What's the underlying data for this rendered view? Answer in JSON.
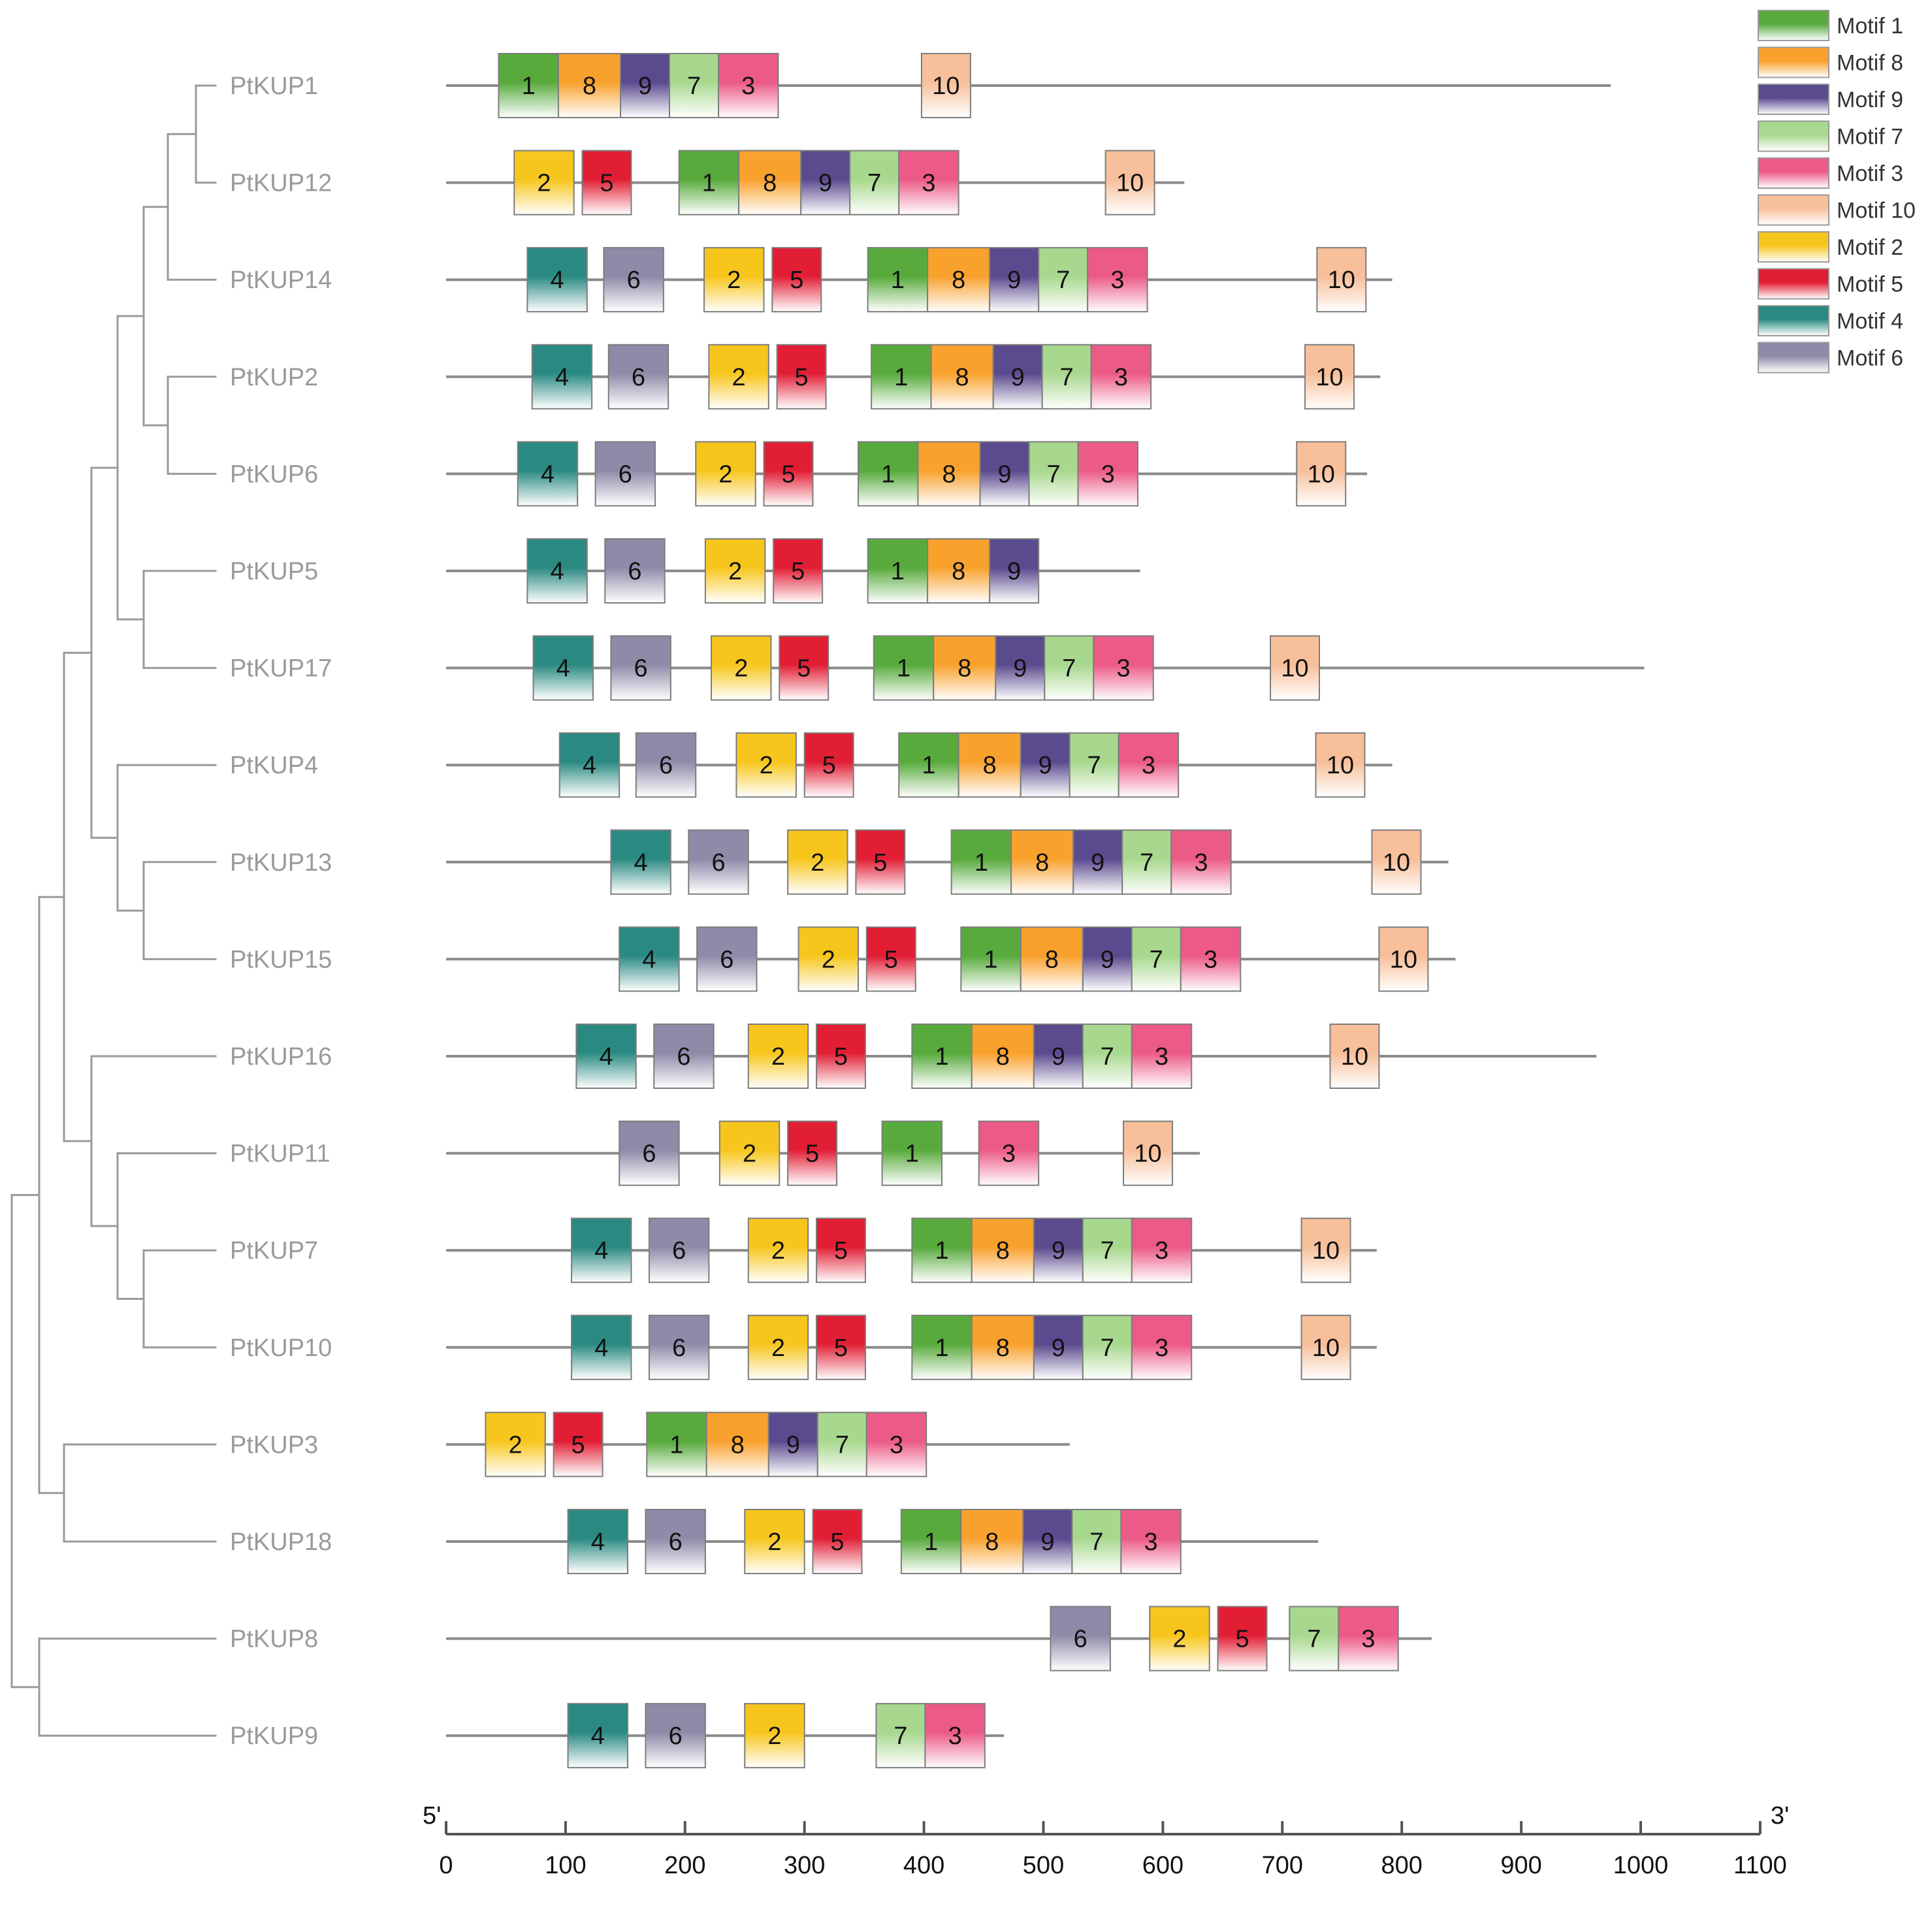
{
  "legend": [
    {
      "motif": "1",
      "label": "Motif 1",
      "top": "#58aa3c",
      "bottom": "#ffffff"
    },
    {
      "motif": "8",
      "label": "Motif 8",
      "top": "#f9a12d",
      "bottom": "#ffffff"
    },
    {
      "motif": "9",
      "label": "Motif 9",
      "top": "#5a4a8e",
      "bottom": "#ffffff"
    },
    {
      "motif": "7",
      "label": "Motif 7",
      "top": "#a8d88e",
      "bottom": "#ffffff"
    },
    {
      "motif": "3",
      "label": "Motif 3",
      "top": "#ec5a87",
      "bottom": "#ffffff"
    },
    {
      "motif": "10",
      "label": "Motif 10",
      "top": "#f7bf9a",
      "bottom": "#ffffff"
    },
    {
      "motif": "2",
      "label": "Motif 2",
      "top": "#f7c61c",
      "bottom": "#ffffff"
    },
    {
      "motif": "5",
      "label": "Motif 5",
      "top": "#e21e35",
      "bottom": "#ffffff"
    },
    {
      "motif": "4",
      "label": "Motif 4",
      "top": "#2a8a82",
      "bottom": "#ffffff"
    },
    {
      "motif": "6",
      "label": "Motif 6",
      "top": "#8f8aa8",
      "bottom": "#ffffff"
    }
  ],
  "axis": {
    "left_label": "5'",
    "right_label": "3'",
    "min": 0,
    "max": 1100,
    "ticks": [
      "0",
      "100",
      "200",
      "300",
      "400",
      "500",
      "600",
      "700",
      "800",
      "900",
      "1000",
      "1100"
    ]
  },
  "genes": [
    {
      "name": "PtKUP1",
      "length": 975,
      "motifs": [
        {
          "id": "1",
          "start": 44
        },
        {
          "id": "8",
          "start": 94
        },
        {
          "id": "9",
          "start": 146
        },
        {
          "id": "7",
          "start": 187
        },
        {
          "id": "3",
          "start": 228
        },
        {
          "id": "10",
          "start": 398
        }
      ]
    },
    {
      "name": "PtKUP12",
      "length": 618,
      "motifs": [
        {
          "id": "2",
          "start": 57
        },
        {
          "id": "5",
          "start": 114
        },
        {
          "id": "1",
          "start": 195
        },
        {
          "id": "8",
          "start": 245
        },
        {
          "id": "9",
          "start": 297
        },
        {
          "id": "7",
          "start": 338
        },
        {
          "id": "3",
          "start": 379
        },
        {
          "id": "10",
          "start": 552
        }
      ]
    },
    {
      "name": "PtKUP14",
      "length": 792,
      "motifs": [
        {
          "id": "4",
          "start": 68
        },
        {
          "id": "6",
          "start": 132
        },
        {
          "id": "2",
          "start": 216
        },
        {
          "id": "5",
          "start": 273
        },
        {
          "id": "1",
          "start": 353
        },
        {
          "id": "8",
          "start": 403
        },
        {
          "id": "9",
          "start": 455
        },
        {
          "id": "7",
          "start": 496
        },
        {
          "id": "3",
          "start": 537
        },
        {
          "id": "10",
          "start": 729
        }
      ]
    },
    {
      "name": "PtKUP2",
      "length": 782,
      "motifs": [
        {
          "id": "4",
          "start": 72
        },
        {
          "id": "6",
          "start": 136
        },
        {
          "id": "2",
          "start": 220
        },
        {
          "id": "5",
          "start": 277
        },
        {
          "id": "1",
          "start": 356
        },
        {
          "id": "8",
          "start": 406
        },
        {
          "id": "9",
          "start": 458
        },
        {
          "id": "7",
          "start": 499
        },
        {
          "id": "3",
          "start": 540
        },
        {
          "id": "10",
          "start": 719
        }
      ]
    },
    {
      "name": "PtKUP6",
      "length": 771,
      "motifs": [
        {
          "id": "4",
          "start": 60
        },
        {
          "id": "6",
          "start": 125
        },
        {
          "id": "2",
          "start": 209
        },
        {
          "id": "5",
          "start": 266
        },
        {
          "id": "1",
          "start": 345
        },
        {
          "id": "8",
          "start": 395
        },
        {
          "id": "9",
          "start": 447
        },
        {
          "id": "7",
          "start": 488
        },
        {
          "id": "3",
          "start": 529
        },
        {
          "id": "10",
          "start": 712
        }
      ]
    },
    {
      "name": "PtKUP5",
      "length": 581,
      "motifs": [
        {
          "id": "4",
          "start": 68
        },
        {
          "id": "6",
          "start": 133
        },
        {
          "id": "2",
          "start": 217
        },
        {
          "id": "5",
          "start": 274
        },
        {
          "id": "1",
          "start": 353
        },
        {
          "id": "8",
          "start": 403
        },
        {
          "id": "9",
          "start": 455
        }
      ]
    },
    {
      "name": "PtKUP17",
      "length": 1003,
      "motifs": [
        {
          "id": "4",
          "start": 73
        },
        {
          "id": "6",
          "start": 138
        },
        {
          "id": "2",
          "start": 222
        },
        {
          "id": "5",
          "start": 279
        },
        {
          "id": "1",
          "start": 358
        },
        {
          "id": "8",
          "start": 408
        },
        {
          "id": "9",
          "start": 460
        },
        {
          "id": "7",
          "start": 501
        },
        {
          "id": "3",
          "start": 542
        },
        {
          "id": "10",
          "start": 690
        }
      ]
    },
    {
      "name": "PtKUP4",
      "length": 792,
      "motifs": [
        {
          "id": "4",
          "start": 95
        },
        {
          "id": "6",
          "start": 159
        },
        {
          "id": "2",
          "start": 243
        },
        {
          "id": "5",
          "start": 300
        },
        {
          "id": "1",
          "start": 379
        },
        {
          "id": "8",
          "start": 429
        },
        {
          "id": "9",
          "start": 481
        },
        {
          "id": "7",
          "start": 522
        },
        {
          "id": "3",
          "start": 563
        },
        {
          "id": "10",
          "start": 728
        }
      ]
    },
    {
      "name": "PtKUP13",
      "length": 839,
      "motifs": [
        {
          "id": "4",
          "start": 138
        },
        {
          "id": "6",
          "start": 203
        },
        {
          "id": "2",
          "start": 286
        },
        {
          "id": "5",
          "start": 343
        },
        {
          "id": "1",
          "start": 423
        },
        {
          "id": "8",
          "start": 473
        },
        {
          "id": "9",
          "start": 525
        },
        {
          "id": "7",
          "start": 566
        },
        {
          "id": "3",
          "start": 607
        },
        {
          "id": "10",
          "start": 775
        }
      ]
    },
    {
      "name": "PtKUP15",
      "length": 845,
      "motifs": [
        {
          "id": "4",
          "start": 145
        },
        {
          "id": "6",
          "start": 210
        },
        {
          "id": "2",
          "start": 295
        },
        {
          "id": "5",
          "start": 352
        },
        {
          "id": "1",
          "start": 431
        },
        {
          "id": "8",
          "start": 481
        },
        {
          "id": "9",
          "start": 533
        },
        {
          "id": "7",
          "start": 574
        },
        {
          "id": "3",
          "start": 615
        },
        {
          "id": "10",
          "start": 781
        }
      ]
    },
    {
      "name": "PtKUP16",
      "length": 963,
      "motifs": [
        {
          "id": "4",
          "start": 109
        },
        {
          "id": "6",
          "start": 174
        },
        {
          "id": "2",
          "start": 253
        },
        {
          "id": "5",
          "start": 310
        },
        {
          "id": "1",
          "start": 390
        },
        {
          "id": "8",
          "start": 440
        },
        {
          "id": "9",
          "start": 492
        },
        {
          "id": "7",
          "start": 533
        },
        {
          "id": "3",
          "start": 574
        },
        {
          "id": "10",
          "start": 740
        }
      ]
    },
    {
      "name": "PtKUP11",
      "length": 631,
      "motifs": [
        {
          "id": "6",
          "start": 145
        },
        {
          "id": "2",
          "start": 229
        },
        {
          "id": "5",
          "start": 286
        },
        {
          "id": "1",
          "start": 365
        },
        {
          "id": "3",
          "start": 446
        },
        {
          "id": "10",
          "start": 567
        }
      ]
    },
    {
      "name": "PtKUP7",
      "length": 779,
      "motifs": [
        {
          "id": "4",
          "start": 105
        },
        {
          "id": "6",
          "start": 170
        },
        {
          "id": "2",
          "start": 253
        },
        {
          "id": "5",
          "start": 310
        },
        {
          "id": "1",
          "start": 390
        },
        {
          "id": "8",
          "start": 440
        },
        {
          "id": "9",
          "start": 492
        },
        {
          "id": "7",
          "start": 533
        },
        {
          "id": "3",
          "start": 574
        },
        {
          "id": "10",
          "start": 716
        }
      ]
    },
    {
      "name": "PtKUP10",
      "length": 779,
      "motifs": [
        {
          "id": "4",
          "start": 105
        },
        {
          "id": "6",
          "start": 170
        },
        {
          "id": "2",
          "start": 253
        },
        {
          "id": "5",
          "start": 310
        },
        {
          "id": "1",
          "start": 390
        },
        {
          "id": "8",
          "start": 440
        },
        {
          "id": "9",
          "start": 492
        },
        {
          "id": "7",
          "start": 533
        },
        {
          "id": "3",
          "start": 574
        },
        {
          "id": "10",
          "start": 716
        }
      ]
    },
    {
      "name": "PtKUP3",
      "length": 522,
      "motifs": [
        {
          "id": "2",
          "start": 33
        },
        {
          "id": "5",
          "start": 90
        },
        {
          "id": "1",
          "start": 168
        },
        {
          "id": "8",
          "start": 218
        },
        {
          "id": "9",
          "start": 270
        },
        {
          "id": "7",
          "start": 311
        },
        {
          "id": "3",
          "start": 352
        }
      ]
    },
    {
      "name": "PtKUP18",
      "length": 730,
      "motifs": [
        {
          "id": "4",
          "start": 102
        },
        {
          "id": "6",
          "start": 167
        },
        {
          "id": "2",
          "start": 250
        },
        {
          "id": "5",
          "start": 307
        },
        {
          "id": "1",
          "start": 381
        },
        {
          "id": "8",
          "start": 431
        },
        {
          "id": "9",
          "start": 483
        },
        {
          "id": "7",
          "start": 524
        },
        {
          "id": "3",
          "start": 565
        }
      ]
    },
    {
      "name": "PtKUP8",
      "length": 825,
      "motifs": [
        {
          "id": "6",
          "start": 506
        },
        {
          "id": "2",
          "start": 589
        },
        {
          "id": "5",
          "start": 646
        },
        {
          "id": "7",
          "start": 706
        },
        {
          "id": "3",
          "start": 747
        }
      ]
    },
    {
      "name": "PtKUP9",
      "length": 467,
      "motifs": [
        {
          "id": "4",
          "start": 102
        },
        {
          "id": "6",
          "start": 167
        },
        {
          "id": "2",
          "start": 250
        },
        {
          "id": "7",
          "start": 360
        },
        {
          "id": "3",
          "start": 401
        }
      ]
    }
  ],
  "motif_widths": {
    "1": 50,
    "8": 52,
    "9": 41,
    "7": 41,
    "3": 50,
    "10": 41,
    "2": 50,
    "5": 41,
    "4": 50,
    "6": 50
  },
  "tree": {
    "leaf_order": [
      "PtKUP1",
      "PtKUP12",
      "PtKUP14",
      "PtKUP2",
      "PtKUP6",
      "PtKUP5",
      "PtKUP17",
      "PtKUP4",
      "PtKUP13",
      "PtKUP15",
      "PtKUP16",
      "PtKUP11",
      "PtKUP7",
      "PtKUP10",
      "PtKUP3",
      "PtKUP18",
      "PtKUP8",
      "PtKUP9"
    ],
    "newick": "((((((((PtKUP1,PtKUP12),PtKUP14),(PtKUP2,PtKUP6)),(PtKUP5,PtKUP17)),(PtKUP4,(PtKUP13,PtKUP15))),(PtKUP16,(PtKUP11,(PtKUP7,PtKUP10)))),(PtKUP3,PtKUP18)),(PtKUP8,PtKUP9))"
  }
}
